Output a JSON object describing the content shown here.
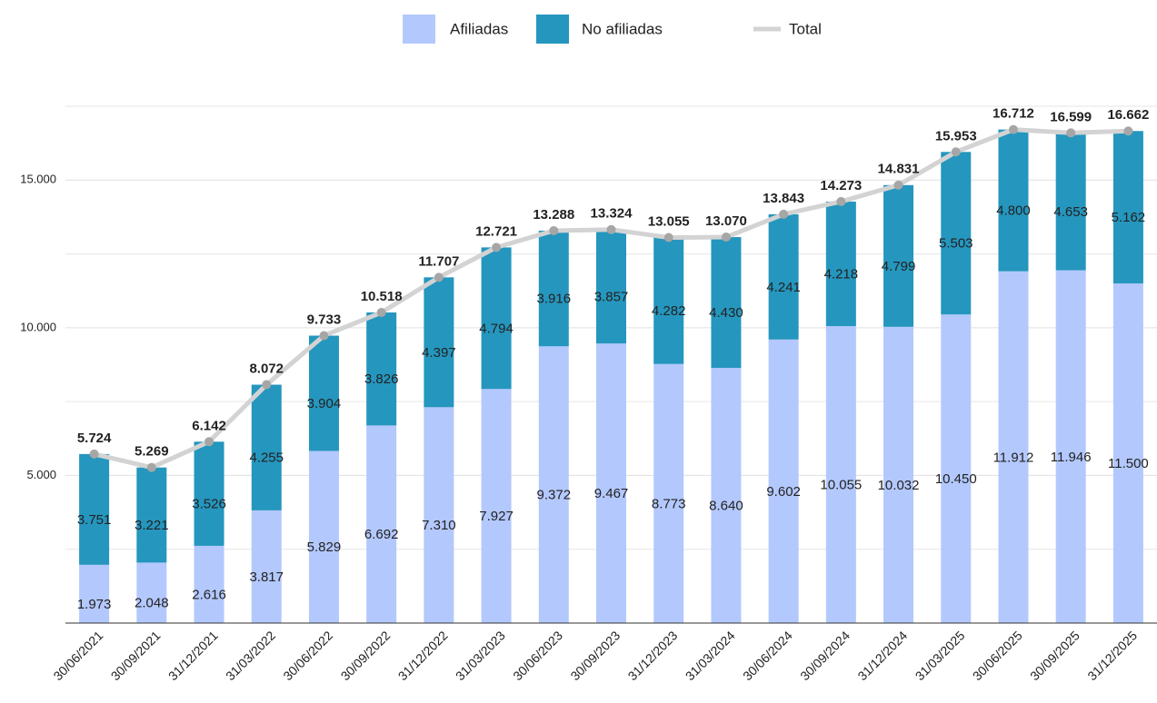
{
  "chart_data": {
    "type": "stacked_bar_line",
    "categories": [
      "30/06/2021",
      "30/09/2021",
      "31/12/2021",
      "31/03/2022",
      "30/06/2022",
      "30/09/2022",
      "31/12/2022",
      "31/03/2023",
      "30/06/2023",
      "30/09/2023",
      "31/12/2023",
      "31/03/2024",
      "30/06/2024",
      "30/09/2024",
      "31/12/2024",
      "31/03/2025",
      "30/06/2025",
      "30/09/2025",
      "31/12/2025"
    ],
    "series": [
      {
        "name": "Afiliadas",
        "color": "#b3c8fd",
        "values": [
          1973,
          2048,
          2616,
          3817,
          5829,
          6692,
          7310,
          7927,
          9372,
          9467,
          8773,
          8640,
          9602,
          10055,
          10032,
          10450,
          11912,
          11946,
          11500
        ],
        "value_labels": [
          "1.973",
          "2.048",
          "2.616",
          "3.817",
          "5.829",
          "6.692",
          "7.310",
          "7.927",
          "9.372",
          "9.467",
          "8.773",
          "8.640",
          "9.602",
          "10.055",
          "10.032",
          "10.450",
          "11.912",
          "11.946",
          "11.500"
        ]
      },
      {
        "name": "No afiliadas",
        "color": "#2596be",
        "values": [
          3751,
          3221,
          3526,
          4255,
          3904,
          3826,
          4397,
          4794,
          3916,
          3857,
          4282,
          4430,
          4241,
          4218,
          4799,
          5503,
          4800,
          4653,
          5162
        ],
        "value_labels": [
          "3.751",
          "3.221",
          "3.526",
          "4.255",
          "3.904",
          "3.826",
          "4.397",
          "4.794",
          "3.916",
          "3.857",
          "4.282",
          "4.430",
          "4.241",
          "4.218",
          "4.799",
          "5.503",
          "4.800",
          "4.653",
          "5.162"
        ]
      }
    ],
    "total": {
      "name": "Total",
      "color": "#d3d3d3",
      "marker_color": "#a6a6a6",
      "values": [
        5724,
        5269,
        6142,
        8072,
        9733,
        10518,
        11707,
        12721,
        13288,
        13324,
        13055,
        13070,
        13843,
        14273,
        14831,
        15953,
        16712,
        16599,
        16662
      ],
      "value_labels": [
        "5.724",
        "5.269",
        "6.142",
        "8.072",
        "9.733",
        "10.518",
        "11.707",
        "12.721",
        "13.288",
        "13.324",
        "13.055",
        "13.070",
        "13.843",
        "14.273",
        "14.831",
        "15.953",
        "16.712",
        "16.599",
        "16.662"
      ]
    },
    "ylim": [
      0,
      17500
    ],
    "yticks": [
      {
        "value": 5000,
        "label": "5.000"
      },
      {
        "value": 10000,
        "label": "10.000"
      },
      {
        "value": 15000,
        "label": "15.000"
      }
    ],
    "y_minor_ticks": [
      2500,
      7500,
      12500,
      17500
    ],
    "grid": true,
    "legend": "top"
  }
}
